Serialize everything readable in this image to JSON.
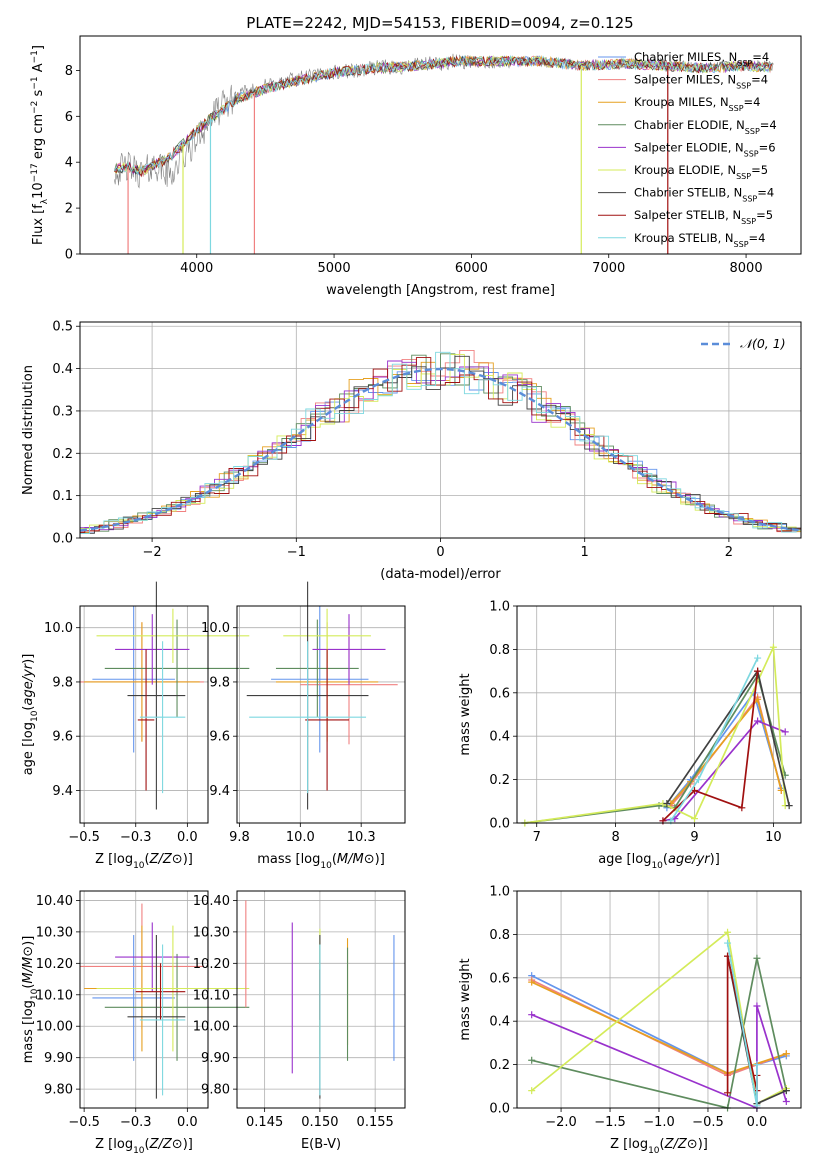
{
  "figure": {
    "title": "PLATE=2242, MJD=54153, FIBERID=0094, z=0.125"
  },
  "colors": {
    "Chabrier MILES": "#6495ED",
    "Salpeter MILES": "#F08080",
    "Kroupa MILES": "#E6A020",
    "Chabrier ELODIE": "#5E8C5E",
    "Salpeter ELODIE": "#9932CC",
    "Kroupa ELODIE": "#D4EB5A",
    "Chabrier STELIB": "#404040",
    "Salpeter STELIB": "#A01010",
    "Kroupa STELIB": "#7ED8E0",
    "data": "#808080",
    "normal": "#5B8DD9"
  },
  "chart_data": [
    {
      "id": "spectrum",
      "type": "line",
      "xlabel": "wavelength [Angstrom, rest frame]",
      "ylabel": "Flux [fλ10⁻¹⁷ erg cm⁻² s⁻¹ A⁻¹]",
      "xlim": [
        3150,
        8400
      ],
      "ylim": [
        0,
        9.5
      ],
      "xticks": [
        4000,
        5000,
        6000,
        7000,
        8000
      ],
      "yticks": [
        0,
        2,
        4,
        6,
        8
      ],
      "legend_placement": "top-right",
      "legend": [
        {
          "model": "Chabrier MILES",
          "label": "Chabrier MILES, N",
          "sub": "SSP",
          "suffix": "=4"
        },
        {
          "model": "Salpeter MILES",
          "label": "Salpeter MILES, N",
          "sub": "SSP",
          "suffix": "=4"
        },
        {
          "model": "Kroupa MILES",
          "label": "Kroupa MILES, N",
          "sub": "SSP",
          "suffix": "=4"
        },
        {
          "model": "Chabrier ELODIE",
          "label": "Chabrier ELODIE, N",
          "sub": "SSP",
          "suffix": "=4"
        },
        {
          "model": "Salpeter ELODIE",
          "label": "Salpeter ELODIE, N",
          "sub": "SSP",
          "suffix": "=6"
        },
        {
          "model": "Kroupa ELODIE",
          "label": "Kroupa ELODIE, N",
          "sub": "SSP",
          "suffix": "=5"
        },
        {
          "model": "Chabrier STELIB",
          "label": "Chabrier STELIB, N",
          "sub": "SSP",
          "suffix": "=4"
        },
        {
          "model": "Salpeter STELIB",
          "label": "Salpeter STELIB, N",
          "sub": "SSP",
          "suffix": "=5"
        },
        {
          "model": "Kroupa STELIB",
          "label": "Kroupa STELIB, N",
          "sub": "SSP",
          "suffix": "=4"
        }
      ],
      "data_envelope": {
        "x": [
          3400,
          3500,
          3600,
          3700,
          3800,
          3900,
          4000,
          4100,
          4200,
          4300,
          4500,
          4700,
          5000,
          5300,
          5600,
          5900,
          6200,
          6500,
          6800,
          7100,
          7400,
          7700,
          8000,
          8200
        ],
        "y": [
          3.6,
          3.8,
          3.5,
          3.9,
          3.4,
          4.2,
          5.0,
          5.9,
          6.5,
          6.9,
          7.3,
          7.6,
          7.9,
          8.1,
          8.2,
          8.4,
          8.3,
          8.4,
          8.2,
          8.3,
          8.3,
          8.1,
          8.2,
          8.2
        ]
      },
      "model_envelope": {
        "x": [
          3400,
          3500,
          3600,
          3700,
          3800,
          3900,
          4000,
          4100,
          4200,
          4300,
          4500,
          4700,
          5000,
          5300,
          5600,
          5900,
          6200,
          6500,
          6800,
          7100,
          7400,
          7700,
          8000,
          8200
        ],
        "y": [
          3.7,
          3.8,
          3.6,
          3.9,
          4.2,
          4.8,
          5.4,
          5.9,
          6.3,
          6.8,
          7.2,
          7.5,
          7.9,
          8.1,
          8.2,
          8.4,
          8.4,
          8.4,
          8.2,
          8.3,
          8.2,
          8.1,
          8.2,
          8.1
        ]
      },
      "model_dips": [
        {
          "model": "Salpeter MILES",
          "x": 3500
        },
        {
          "model": "Kroupa ELODIE",
          "x": 3900
        },
        {
          "model": "Kroupa STELIB",
          "x": 4100
        },
        {
          "model": "Salpeter MILES",
          "x": 4420
        },
        {
          "model": "Kroupa ELODIE",
          "x": 6800
        },
        {
          "model": "Salpeter STELIB",
          "x": 7430
        }
      ]
    },
    {
      "id": "residuals",
      "type": "line",
      "xlabel": "(data-model)/error",
      "ylabel": "Normed distribution",
      "xlim": [
        -2.5,
        2.5
      ],
      "ylim": [
        0,
        0.51
      ],
      "xticks": [
        -2,
        -1,
        0,
        1,
        2
      ],
      "yticks": [
        0.0,
        0.1,
        0.2,
        0.3,
        0.4,
        0.5
      ],
      "grid": true,
      "legend_placement": "top-right",
      "legend_label": "𝒩(0, 1)",
      "normal": {
        "mean": 0,
        "sigma": 1,
        "style": "dashed"
      }
    },
    {
      "id": "age-vs-Z",
      "type": "scatter",
      "xlabel": "Z [log₁₀(Z/Z⊙)]",
      "ylabel": "age  [log₁₀(age/yr)]",
      "xlim": [
        -0.52,
        0.1
      ],
      "ylim": [
        9.28,
        10.08
      ],
      "xticks": [
        -0.5,
        -0.25,
        0.0
      ],
      "yticks": [
        9.4,
        9.6,
        9.8,
        10.0
      ],
      "grid": true,
      "points": [
        {
          "model": "Chabrier MILES",
          "x": -0.26,
          "xerr": 0.2,
          "y": 9.81,
          "yerr": 0.27
        },
        {
          "model": "Salpeter MILES",
          "x": -0.22,
          "xerr": 0.3,
          "y": 9.8,
          "yerr": 0.22
        },
        {
          "model": "Kroupa MILES",
          "x": -0.22,
          "xerr": 0.28,
          "y": 9.8,
          "yerr": 0.22
        },
        {
          "model": "Chabrier ELODIE",
          "x": -0.05,
          "xerr": 0.35,
          "y": 9.85,
          "yerr": 0.18
        },
        {
          "model": "Salpeter ELODIE",
          "x": -0.17,
          "xerr": 0.18,
          "y": 9.92,
          "yerr": 0.13
        },
        {
          "model": "Kroupa ELODIE",
          "x": -0.07,
          "xerr": 0.37,
          "y": 9.97,
          "yerr": 0.1
        },
        {
          "model": "Chabrier STELIB",
          "x": -0.15,
          "xerr": 0.14,
          "y": 9.75,
          "yerr": 0.42
        },
        {
          "model": "Salpeter STELIB",
          "x": -0.2,
          "xerr": 0.04,
          "y": 9.66,
          "yerr": 0.26
        },
        {
          "model": "Kroupa STELIB",
          "x": -0.12,
          "xerr": 0.11,
          "y": 9.67,
          "yerr": 0.28
        }
      ]
    },
    {
      "id": "age-vs-mass",
      "type": "scatter",
      "xlabel": "mass [log₁₀(M/M⊙)]",
      "ylabel": "",
      "xlim": [
        9.74,
        10.43
      ],
      "ylim": [
        9.28,
        10.08
      ],
      "xticks": [
        9.75,
        10.0,
        10.25
      ],
      "yticks": [
        9.4,
        9.6,
        9.8,
        10.0
      ],
      "grid": true,
      "points": [
        {
          "model": "Chabrier MILES",
          "x": 10.08,
          "xerr": 0.2,
          "y": 9.81,
          "yerr": 0.27
        },
        {
          "model": "Salpeter MILES",
          "x": 10.2,
          "xerr": 0.2,
          "y": 9.79,
          "yerr": 0.22
        },
        {
          "model": "Kroupa MILES",
          "x": 10.11,
          "xerr": 0.21,
          "y": 9.8,
          "yerr": 0.22
        },
        {
          "model": "Chabrier ELODIE",
          "x": 10.07,
          "xerr": 0.17,
          "y": 9.85,
          "yerr": 0.18
        },
        {
          "model": "Salpeter ELODIE",
          "x": 10.2,
          "xerr": 0.15,
          "y": 9.92,
          "yerr": 0.13
        },
        {
          "model": "Kroupa ELODIE",
          "x": 10.11,
          "xerr": 0.18,
          "y": 9.97,
          "yerr": 0.1
        },
        {
          "model": "Chabrier STELIB",
          "x": 10.03,
          "xerr": 0.25,
          "y": 9.75,
          "yerr": 0.42
        },
        {
          "model": "Salpeter STELIB",
          "x": 10.11,
          "xerr": 0.09,
          "y": 9.66,
          "yerr": 0.26
        },
        {
          "model": "Kroupa STELIB",
          "x": 10.03,
          "xerr": 0.24,
          "y": 9.67,
          "yerr": 0.28
        }
      ]
    },
    {
      "id": "mass-weight-vs-age",
      "type": "line",
      "xlabel": "age  [log₁₀(age/yr)]",
      "ylabel": "mass weight",
      "xlim": [
        6.75,
        10.35
      ],
      "ylim": [
        0,
        1
      ],
      "xticks": [
        7,
        8,
        9,
        10
      ],
      "yticks": [
        0.0,
        0.2,
        0.4,
        0.6,
        0.8,
        1.0
      ],
      "grid": true,
      "series": [
        {
          "model": "Chabrier MILES",
          "x": [
            8.65,
            8.95,
            9.75,
            10.1
          ],
          "y": [
            0.07,
            0.2,
            0.6,
            0.16
          ]
        },
        {
          "model": "Salpeter MILES",
          "x": [
            8.7,
            8.95,
            9.8,
            10.1
          ],
          "y": [
            0.08,
            0.18,
            0.58,
            0.15
          ]
        },
        {
          "model": "Kroupa MILES",
          "x": [
            8.7,
            8.95,
            9.8,
            10.1
          ],
          "y": [
            0.09,
            0.19,
            0.57,
            0.15
          ]
        },
        {
          "model": "Chabrier ELODIE",
          "x": [
            6.85,
            8.55,
            8.75,
            9.8,
            10.15
          ],
          "y": [
            0.0,
            0.08,
            0.07,
            0.68,
            0.22
          ]
        },
        {
          "model": "Salpeter ELODIE",
          "x": [
            8.6,
            8.75,
            9.8,
            10.15
          ],
          "y": [
            0.01,
            0.02,
            0.47,
            0.42
          ]
        },
        {
          "model": "Kroupa ELODIE",
          "x": [
            6.85,
            8.6,
            9.0,
            10.0,
            10.15
          ],
          "y": [
            0.0,
            0.09,
            0.02,
            0.81,
            0.08
          ]
        },
        {
          "model": "Chabrier STELIB",
          "x": [
            8.65,
            9.8,
            10.2
          ],
          "y": [
            0.09,
            0.7,
            0.08
          ]
        },
        {
          "model": "Salpeter STELIB",
          "x": [
            8.6,
            9.0,
            9.6,
            9.8
          ],
          "y": [
            0.01,
            0.15,
            0.07,
            0.7
          ]
        },
        {
          "model": "Kroupa STELIB",
          "x": [
            8.7,
            9.05,
            9.8
          ],
          "y": [
            0.01,
            0.2,
            0.76
          ]
        }
      ]
    },
    {
      "id": "mass-vs-Z",
      "type": "scatter",
      "xlabel": "Z [log₁₀(Z/Z⊙)]",
      "ylabel": "mass [log₁₀(M/M⊙)]",
      "xlim": [
        -0.52,
        0.1
      ],
      "ylim": [
        9.74,
        10.43
      ],
      "xticks": [
        -0.5,
        -0.25,
        0.0
      ],
      "yticks": [
        9.8,
        9.9,
        10.0,
        10.1,
        10.2,
        10.3,
        10.4
      ],
      "grid": true,
      "points": [
        {
          "model": "Chabrier MILES",
          "x": -0.26,
          "xerr": 0.2,
          "y": 10.09,
          "yerr": 0.2
        },
        {
          "model": "Salpeter MILES",
          "x": -0.22,
          "xerr": 0.3,
          "y": 10.19,
          "yerr": 0.2
        },
        {
          "model": "Kroupa MILES",
          "x": -0.22,
          "xerr": 0.28,
          "y": 10.12,
          "yerr": 0.2
        },
        {
          "model": "Chabrier ELODIE",
          "x": -0.05,
          "xerr": 0.35,
          "y": 10.06,
          "yerr": 0.17
        },
        {
          "model": "Salpeter ELODIE",
          "x": -0.17,
          "xerr": 0.18,
          "y": 10.22,
          "yerr": 0.11
        },
        {
          "model": "Kroupa ELODIE",
          "x": -0.07,
          "xerr": 0.37,
          "y": 10.12,
          "yerr": 0.2
        },
        {
          "model": "Chabrier STELIB",
          "x": -0.15,
          "xerr": 0.14,
          "y": 10.03,
          "yerr": 0.26
        },
        {
          "model": "Salpeter STELIB",
          "x": -0.13,
          "xerr": 0.12,
          "y": 10.11,
          "yerr": 0.09
        },
        {
          "model": "Kroupa STELIB",
          "x": -0.12,
          "xerr": 0.11,
          "y": 10.02,
          "yerr": 0.24
        }
      ]
    },
    {
      "id": "mass-vs-ebv",
      "type": "scatter",
      "xlabel": "E(B-V)",
      "ylabel": "",
      "xlim": [
        0.1425,
        0.1577
      ],
      "ylim": [
        9.74,
        10.43
      ],
      "xticks": [
        0.145,
        0.15,
        0.155
      ],
      "yticks": [
        9.8,
        9.9,
        10.0,
        10.1,
        10.2,
        10.3,
        10.4
      ],
      "grid": true,
      "points": [
        {
          "model": "Chabrier MILES",
          "x": 0.1567,
          "y": 10.09,
          "yerr": 0.2
        },
        {
          "model": "Salpeter MILES",
          "x": 0.1433,
          "y": 10.23,
          "yerr": 0.17
        },
        {
          "model": "Kroupa MILES",
          "x": 0.1525,
          "y": 10.11,
          "yerr": 0.17
        },
        {
          "model": "Chabrier ELODIE",
          "x": 0.1525,
          "y": 10.07,
          "yerr": 0.18
        },
        {
          "model": "Salpeter ELODIE",
          "x": 0.1475,
          "y": 10.09,
          "yerr": 0.24
        },
        {
          "model": "Kroupa ELODIE",
          "x": 0.15,
          "y": 10.11,
          "yerr": 0.2
        },
        {
          "model": "Chabrier STELIB",
          "x": 0.15,
          "y": 10.03,
          "yerr": 0.26
        },
        {
          "model": "Salpeter STELIB",
          "x": 0.15,
          "y": 10.1,
          "yerr": 0.08
        },
        {
          "model": "Kroupa STELIB",
          "x": 0.15,
          "y": 10.02,
          "yerr": 0.24
        }
      ]
    },
    {
      "id": "mass-weight-vs-Z",
      "type": "line",
      "xlabel": "Z [log₁₀(Z/Z⊙)]",
      "ylabel": "mass weight",
      "xlim": [
        -2.45,
        0.45
      ],
      "ylim": [
        0,
        1
      ],
      "xticks": [
        -2.0,
        -1.5,
        -1.0,
        -0.5,
        0.0
      ],
      "yticks": [
        0.0,
        0.2,
        0.4,
        0.6,
        0.8,
        1.0
      ],
      "grid": true,
      "series": [
        {
          "model": "Chabrier MILES",
          "x": [
            -2.3,
            -0.3,
            0.3
          ],
          "y": [
            0.61,
            0.16,
            0.24
          ]
        },
        {
          "model": "Salpeter MILES",
          "x": [
            -2.3,
            -0.3,
            0.3
          ],
          "y": [
            0.59,
            0.15,
            0.25
          ]
        },
        {
          "model": "Kroupa MILES",
          "x": [
            -2.3,
            -0.3,
            0.3
          ],
          "y": [
            0.58,
            0.16,
            0.25
          ]
        },
        {
          "model": "Chabrier ELODIE",
          "x": [
            -2.3,
            -0.3,
            0.0,
            0.3
          ],
          "y": [
            0.22,
            0.0,
            0.69,
            0.08
          ]
        },
        {
          "model": "Salpeter ELODIE",
          "x": [
            -2.3,
            0.0,
            0.0,
            0.3
          ],
          "y": [
            0.43,
            0.0,
            0.47,
            0.03
          ]
        },
        {
          "model": "Kroupa ELODIE",
          "x": [
            -2.3,
            -0.3,
            0.0,
            0.3
          ],
          "y": [
            0.08,
            0.81,
            0.02,
            0.09
          ]
        },
        {
          "model": "Chabrier STELIB",
          "x": [
            -0.3,
            0.0,
            0.3
          ],
          "y": [
            0.7,
            0.02,
            0.08
          ]
        },
        {
          "model": "Salpeter STELIB",
          "x": [
            -0.3,
            -0.3,
            0.0,
            0.0
          ],
          "y": [
            0.07,
            0.7,
            0.08,
            0.15
          ]
        },
        {
          "model": "Kroupa STELIB",
          "x": [
            -0.3,
            0.0,
            0.0
          ],
          "y": [
            0.76,
            0.01,
            0.2
          ]
        }
      ]
    }
  ]
}
